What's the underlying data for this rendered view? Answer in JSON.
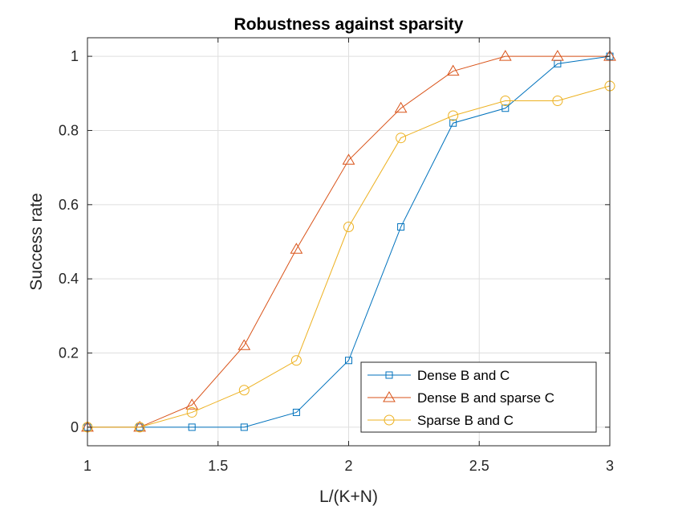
{
  "chart_data": {
    "type": "line",
    "title": "Robustness against sparsity",
    "xlabel": "L/(K+N)",
    "ylabel": "Success rate",
    "xlim": [
      1,
      3
    ],
    "ylim": [
      -0.05,
      1.05
    ],
    "xticks": [
      1,
      1.5,
      2,
      2.5,
      3
    ],
    "xtick_labels": [
      "1",
      "1.5",
      "2",
      "2.5",
      "3"
    ],
    "yticks": [
      0,
      0.2,
      0.4,
      0.6,
      0.8,
      1
    ],
    "ytick_labels": [
      "0",
      "0.2",
      "0.4",
      "0.6",
      "0.8",
      "1"
    ],
    "grid": true,
    "legend_position": "bottom-right",
    "x": [
      1,
      1.2,
      1.4,
      1.6,
      1.8,
      2,
      2.2,
      2.4,
      2.6,
      2.8,
      3
    ],
    "series": [
      {
        "name": "Dense B and C",
        "color": "#0072BD",
        "marker": "square",
        "values": [
          0,
          0,
          0,
          0,
          0.04,
          0.18,
          0.54,
          0.82,
          0.86,
          0.98,
          1
        ]
      },
      {
        "name": "Dense B and sparse C",
        "color": "#D95319",
        "marker": "triangle",
        "values": [
          0,
          0,
          0.06,
          0.22,
          0.48,
          0.72,
          0.86,
          0.96,
          1,
          1,
          1
        ]
      },
      {
        "name": "Sparse B and C",
        "color": "#EDB120",
        "marker": "circle",
        "values": [
          0,
          0,
          0.04,
          0.1,
          0.18,
          0.54,
          0.78,
          0.84,
          0.88,
          0.88,
          0.92
        ]
      }
    ]
  }
}
